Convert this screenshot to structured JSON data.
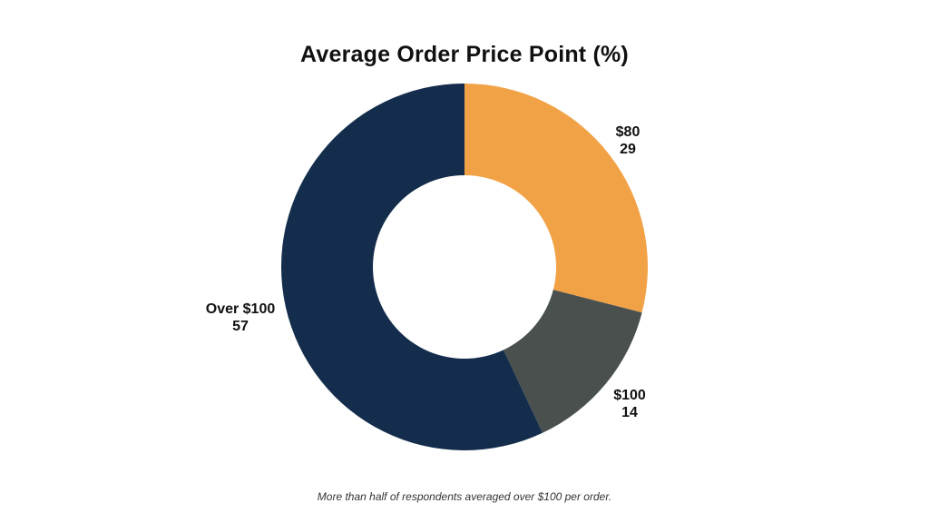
{
  "chart_data": {
    "type": "pie",
    "title": "Average Order Price Point (%)",
    "donut": true,
    "slices": [
      {
        "label": "$80",
        "value": 29,
        "color": "#F2A246"
      },
      {
        "label": "$100",
        "value": 14,
        "color": "#49504E"
      },
      {
        "label": "Over $100",
        "value": 57,
        "color": "#142D4C"
      }
    ],
    "caption": "More than half of respondents averaged over $100 per order."
  }
}
